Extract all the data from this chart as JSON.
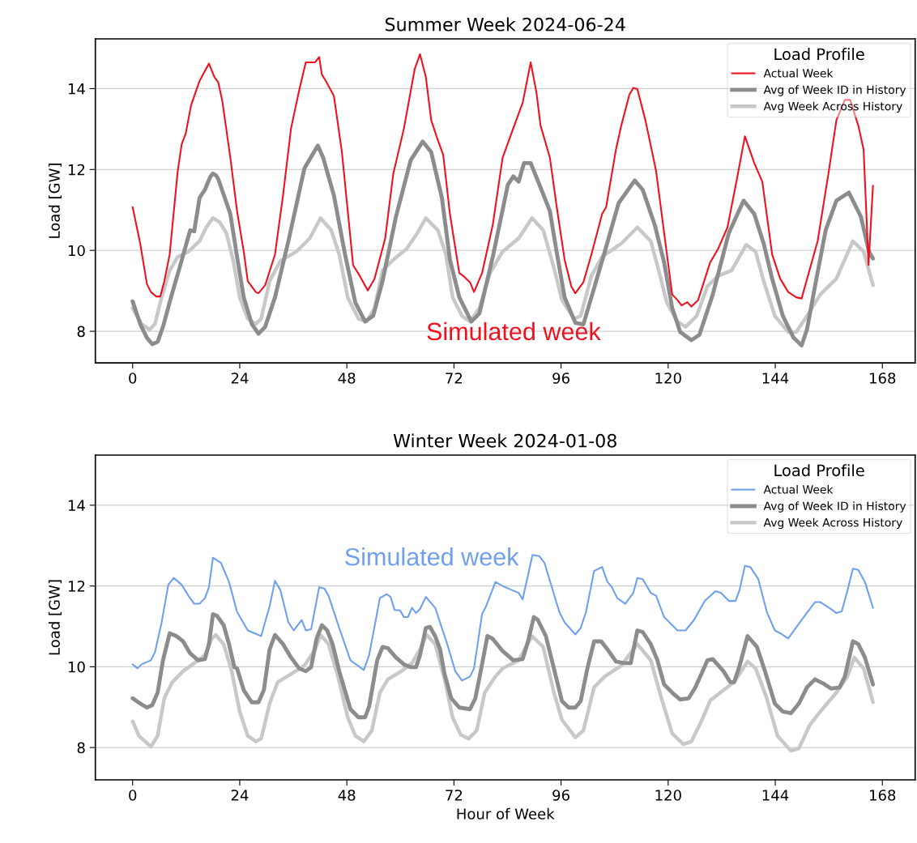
{
  "chart_data": [
    {
      "type": "line",
      "title": "Summer Week 2024-06-24",
      "ylabel": "Load [GW]",
      "legend_title": "Load Profile",
      "legend": "top right",
      "grid": "y",
      "xlim": [
        -8.35,
        175.35
      ],
      "xticks": [
        0,
        24,
        48,
        72,
        96,
        120,
        144,
        168
      ],
      "ylim": [
        7.22,
        15.23
      ],
      "yticks": [
        8,
        10,
        12,
        14
      ],
      "annotations": [
        "Simulated week"
      ],
      "series": [
        {
          "name": "Actual Week",
          "color": "#f0101e",
          "x": [
            0,
            1.7,
            3.2,
            4.1,
            5.3,
            6.2,
            7.1,
            8.3,
            10.1,
            11,
            11.9,
            13.1,
            15,
            17.1,
            18.3,
            19.2,
            20.1,
            21.9,
            23.4,
            24.9,
            25.8,
            27.6,
            28.2,
            29.7,
            31.9,
            33.7,
            35.5,
            37.3,
            38.8,
            40.9,
            41.8,
            42.4,
            43.3,
            45.1,
            46.9,
            49.4,
            50.9,
            52.7,
            54.2,
            56.6,
            58.4,
            60.8,
            63.2,
            64.4,
            65.7,
            66.9,
            68.1,
            69.6,
            71.1,
            73.2,
            74.4,
            75.6,
            76.5,
            78.3,
            80.7,
            82.9,
            85.3,
            87.4,
            89.2,
            90.5,
            91.4,
            93.5,
            95,
            96.8,
            98.3,
            99.2,
            101,
            102.8,
            105.2,
            106.1,
            108.3,
            109.5,
            111.3,
            112.2,
            113.1,
            114.9,
            117.3,
            119.1,
            120.9,
            122.1,
            123,
            124.3,
            125.2,
            126.7,
            129.4,
            131.2,
            133.3,
            135.4,
            137.2,
            139.3,
            141.1,
            143.3,
            145.1,
            146.9,
            148.7,
            149.9,
            153.5,
            155.9,
            157.7,
            159.6,
            160.8,
            162.6,
            163.8,
            164.9,
            165.9
          ],
          "values": [
            11.07,
            10.17,
            9.17,
            8.97,
            8.86,
            8.86,
            9.24,
            9.9,
            11.96,
            12.63,
            12.89,
            13.59,
            14.19,
            14.62,
            14.29,
            14.15,
            13.69,
            12.29,
            10.97,
            9.97,
            9.24,
            8.97,
            8.94,
            9.14,
            9.9,
            11.36,
            13.02,
            13.95,
            14.65,
            14.65,
            14.78,
            14.35,
            14.19,
            13.82,
            12.43,
            9.64,
            9.37,
            9.01,
            9.3,
            10.3,
            11.89,
            13.02,
            14.48,
            14.85,
            14.29,
            13.22,
            12.82,
            12.36,
            10.9,
            9.44,
            9.34,
            9.21,
            8.97,
            9.44,
            10.63,
            12.29,
            13.02,
            13.65,
            14.65,
            13.89,
            13.09,
            12.29,
            11.1,
            9.77,
            9.11,
            8.94,
            9.21,
            9.9,
            10.9,
            11.07,
            12.49,
            13.09,
            13.85,
            14.02,
            13.99,
            13.22,
            11.96,
            10.43,
            8.91,
            8.77,
            8.64,
            8.72,
            8.61,
            8.77,
            9.7,
            10.04,
            10.57,
            11.76,
            12.82,
            12.16,
            11.7,
            9.9,
            9.3,
            8.97,
            8.84,
            8.81,
            10.23,
            11.89,
            13.22,
            13.72,
            13.72,
            13.09,
            12.49,
            9.64,
            11.6
          ]
        },
        {
          "name": "Avg of Week ID in History",
          "color": "#8c8c8c",
          "x": [
            0,
            1.7,
            3.2,
            4.4,
            5.6,
            6.8,
            8.6,
            10.7,
            12.9,
            13.8,
            15,
            16.2,
            17.4,
            18,
            18.7,
            19.2,
            21.9,
            23.4,
            24.9,
            26.7,
            28.2,
            29.7,
            31.9,
            34.9,
            38.5,
            41.5,
            42.7,
            45.1,
            47.6,
            49.9,
            52.1,
            53.9,
            56,
            59,
            62.3,
            65,
            66.9,
            69.3,
            71.1,
            73.2,
            75.9,
            77.7,
            80.7,
            84.1,
            85.3,
            86.5,
            87.7,
            89.2,
            91.4,
            93.5,
            95,
            96.8,
            99.2,
            101,
            102.8,
            105.8,
            108.9,
            112.5,
            114.3,
            117,
            119.1,
            120.9,
            122.7,
            125.2,
            127,
            130,
            133.6,
            136.9,
            139.3,
            141.4,
            143.3,
            145.7,
            148.1,
            149.9,
            151.1,
            152.9,
            155.3,
            157.7,
            160.5,
            163.2,
            165,
            165.9
          ],
          "values": [
            8.74,
            8.18,
            7.84,
            7.68,
            7.74,
            8.11,
            8.84,
            9.64,
            10.5,
            10.47,
            11.3,
            11.5,
            11.82,
            11.9,
            11.85,
            11.76,
            10.9,
            9.84,
            8.84,
            8.18,
            7.94,
            8.11,
            8.84,
            10.23,
            12.03,
            12.59,
            12.29,
            11.36,
            9.9,
            8.71,
            8.24,
            8.38,
            9.24,
            10.83,
            12.23,
            12.69,
            12.43,
            11.3,
            9.77,
            8.84,
            8.24,
            8.44,
            9.84,
            11.63,
            11.83,
            11.7,
            12.16,
            12.16,
            11.56,
            10.97,
            9.97,
            8.84,
            8.21,
            8.17,
            8.84,
            9.97,
            11.17,
            11.73,
            11.5,
            10.63,
            9.7,
            8.58,
            7.98,
            7.78,
            7.91,
            8.91,
            10.43,
            11.23,
            10.9,
            10.17,
            9.3,
            8.38,
            7.84,
            7.65,
            8.04,
            9.11,
            10.5,
            11.23,
            11.43,
            10.83,
            9.97,
            9.8
          ]
        },
        {
          "name": "Avg Week Across History",
          "color": "#c8c8c8",
          "x": [
            0,
            2,
            3.8,
            5,
            6.5,
            8.3,
            10.1,
            12.5,
            15,
            16.5,
            18,
            19.5,
            21,
            22.5,
            24,
            25.8,
            27.6,
            28.8,
            30.7,
            33.1,
            36.7,
            39.7,
            42.1,
            44.5,
            46.3,
            48.2,
            50.6,
            52.4,
            54.2,
            56,
            58.4,
            61.4,
            63.8,
            65.7,
            68.4,
            70.2,
            71.7,
            73.8,
            75.6,
            77.7,
            80.1,
            82.9,
            86.5,
            89.5,
            92,
            94.4,
            96.2,
            98.9,
            100.4,
            102.8,
            105.2,
            109.5,
            113.1,
            116.1,
            117.9,
            119.7,
            122.1,
            123.9,
            126.4,
            128.8,
            131.2,
            134.2,
            137.5,
            139.6,
            141.4,
            143.9,
            146.9,
            148.7,
            151.1,
            154.1,
            157.7,
            161.4,
            163.8,
            165.9
          ],
          "values": [
            8.57,
            8.18,
            8.04,
            8.18,
            8.84,
            9.5,
            9.84,
            9.97,
            10.23,
            10.57,
            10.8,
            10.7,
            10.43,
            9.77,
            8.84,
            8.31,
            8.18,
            8.31,
            9.24,
            9.74,
            9.97,
            10.3,
            10.8,
            10.5,
            9.9,
            8.84,
            8.31,
            8.24,
            8.57,
            9.5,
            9.77,
            10.04,
            10.43,
            10.8,
            10.5,
            9.9,
            8.84,
            8.38,
            8.24,
            8.57,
            9.44,
            9.97,
            10.3,
            10.8,
            10.5,
            9.57,
            8.77,
            8.31,
            8.38,
            9.37,
            9.84,
            10.17,
            10.57,
            10.23,
            9.5,
            8.71,
            8.24,
            8.11,
            8.38,
            9.11,
            9.37,
            9.5,
            10.14,
            9.97,
            9.24,
            8.38,
            7.98,
            7.98,
            8.38,
            8.91,
            9.3,
            10.23,
            9.97,
            9.14
          ]
        }
      ]
    },
    {
      "type": "line",
      "title": "Winter Week 2024-01-08",
      "xlabel": "Hour of Week",
      "ylabel": "Load [GW]",
      "legend_title": "Load Profile",
      "legend": "top right",
      "grid": "y",
      "xlim": [
        -8.35,
        175.35
      ],
      "xticks": [
        0,
        24,
        48,
        72,
        96,
        120,
        144,
        168
      ],
      "ylim": [
        7.2,
        15.24
      ],
      "yticks": [
        8,
        10,
        12,
        14
      ],
      "annotations": [
        "Simulated week"
      ],
      "series": [
        {
          "name": "Actual Week",
          "color": "#6fa0ef",
          "x": [
            0,
            1.1,
            2,
            4.1,
            5,
            6.5,
            8,
            9.2,
            11,
            12.5,
            13.8,
            15,
            16.2,
            17.1,
            18,
            19.8,
            21.6,
            23.4,
            25.8,
            28.8,
            30.7,
            31.9,
            33.1,
            34.9,
            36.1,
            37.9,
            38.8,
            40,
            41.8,
            43,
            43.9,
            46.3,
            48.8,
            51.8,
            53,
            55.4,
            56.9,
            57.8,
            58.7,
            59.9,
            60.8,
            61.7,
            62.6,
            63.5,
            64.4,
            65.7,
            67.8,
            70.5,
            72.3,
            73.8,
            75.6,
            76.5,
            78.3,
            79.2,
            81.3,
            82.9,
            85.6,
            86.5,
            87.4,
            89.6,
            91.1,
            92.3,
            95.6,
            96.8,
            99.2,
            100.4,
            101.6,
            103.4,
            105.2,
            106.4,
            107.4,
            108.6,
            110.4,
            112.2,
            113.1,
            114.3,
            116.1,
            117.3,
            119.1,
            122.1,
            123.9,
            125.8,
            128.2,
            130.6,
            131.8,
            133.6,
            135.1,
            136,
            137.2,
            138.4,
            140.2,
            142.1,
            143.9,
            145.1,
            146.9,
            149.9,
            152.9,
            154.1,
            156.5,
            157.7,
            158.9,
            160.2,
            161.4,
            162.6,
            164.1,
            165.9
          ],
          "values": [
            10.06,
            9.96,
            10.06,
            10.16,
            10.36,
            11.1,
            12.03,
            12.2,
            12.03,
            11.76,
            11.56,
            11.56,
            11.7,
            11.97,
            12.7,
            12.57,
            12.1,
            11.36,
            10.9,
            10.76,
            11.5,
            12.13,
            11.9,
            11.1,
            10.9,
            11.16,
            10.9,
            10.93,
            11.97,
            11.93,
            11.76,
            10.96,
            10.16,
            9.92,
            10.29,
            11.7,
            11.8,
            11.73,
            11.4,
            11.4,
            11.23,
            11.23,
            11.46,
            11.33,
            11.43,
            11.73,
            11.46,
            10.56,
            9.89,
            9.66,
            9.76,
            9.96,
            11.3,
            11.5,
            12.1,
            12,
            11.87,
            11.83,
            11.67,
            12.77,
            12.74,
            12.57,
            11.36,
            11.1,
            10.8,
            10.96,
            11.36,
            12.37,
            12.47,
            12.1,
            11.97,
            11.7,
            11.56,
            11.83,
            12.2,
            12.17,
            11.83,
            11.76,
            11.23,
            10.9,
            10.9,
            11.16,
            11.63,
            11.87,
            11.83,
            11.63,
            11.63,
            11.9,
            12.5,
            12.47,
            12.17,
            11.36,
            10.9,
            10.83,
            10.7,
            11.16,
            11.6,
            11.6,
            11.43,
            11.33,
            11.37,
            11.9,
            12.43,
            12.4,
            12.1,
            11.46
          ]
        },
        {
          "name": "Avg of Week ID in History",
          "color": "#8c8c8c",
          "x": [
            0,
            1.7,
            3.2,
            4.4,
            5.6,
            6.8,
            8.3,
            9.8,
            11.3,
            12.9,
            14.7,
            16.2,
            17.1,
            18,
            18.9,
            20.4,
            21.6,
            22.8,
            23.4,
            24.9,
            26.7,
            28.2,
            29.4,
            30.7,
            31.9,
            33.7,
            35.5,
            37.3,
            38.8,
            40,
            41.2,
            42.4,
            43.6,
            44.8,
            46.3,
            48.8,
            50.6,
            52.1,
            53,
            54.8,
            56,
            57.2,
            59,
            60.8,
            62.3,
            63.5,
            64.4,
            65.7,
            66.6,
            67.8,
            68.9,
            69.9,
            71.4,
            73.2,
            75.6,
            76.8,
            78,
            79.5,
            80.7,
            82.9,
            85.3,
            87.4,
            88.6,
            89.9,
            90.8,
            92.6,
            94.1,
            96.2,
            97.7,
            99.2,
            100.4,
            101.9,
            103.4,
            105,
            106.4,
            108.3,
            110.1,
            111.6,
            113.1,
            114.3,
            116.1,
            117.6,
            119.1,
            120.9,
            122.7,
            124.6,
            126.1,
            128.8,
            130,
            132.4,
            133.9,
            134.8,
            136,
            137.8,
            139.9,
            141.7,
            143.9,
            145.7,
            147.5,
            149.3,
            151.1,
            152.9,
            154.7,
            156.5,
            158.4,
            159.6,
            161.4,
            162.6,
            164.1,
            165.9
          ],
          "values": [
            9.22,
            9.09,
            8.99,
            9.05,
            9.36,
            10.16,
            10.83,
            10.76,
            10.63,
            10.33,
            10.16,
            10.19,
            10.56,
            11.3,
            11.26,
            11.03,
            10.56,
            9.99,
            9.96,
            9.42,
            9.12,
            9.12,
            9.42,
            10.43,
            10.79,
            10.56,
            10.23,
            9.96,
            9.89,
            9.99,
            10.69,
            11.03,
            10.9,
            10.56,
            9.89,
            8.95,
            8.75,
            8.75,
            9.02,
            10.16,
            10.49,
            10.46,
            10.23,
            10.06,
            9.99,
            9.99,
            10.29,
            10.96,
            10.99,
            10.76,
            10.43,
            9.82,
            9.22,
            8.99,
            8.95,
            9.22,
            9.89,
            10.76,
            10.69,
            10.39,
            10.16,
            10.19,
            10.63,
            11.23,
            11.16,
            10.76,
            10.09,
            9.15,
            8.99,
            8.99,
            9.15,
            9.96,
            10.63,
            10.63,
            10.43,
            10.13,
            10.09,
            10.09,
            10.9,
            10.86,
            10.56,
            10.16,
            9.56,
            9.36,
            9.19,
            9.22,
            9.49,
            10.16,
            10.19,
            9.89,
            9.62,
            9.62,
            10.02,
            10.76,
            10.49,
            9.89,
            9.09,
            8.89,
            8.85,
            9.09,
            9.49,
            9.69,
            9.59,
            9.46,
            9.49,
            9.76,
            10.63,
            10.56,
            10.23,
            9.56
          ]
        },
        {
          "name": "Avg Week Across History",
          "color": "#c8c8c8",
          "x": [
            0,
            1.4,
            4.1,
            5.6,
            7.1,
            8.9,
            11.3,
            13.8,
            16.2,
            17.7,
            18.6,
            20.4,
            22.2,
            24,
            25.8,
            27.6,
            28.8,
            30.7,
            32.5,
            35.5,
            38.5,
            40.9,
            42.1,
            43.9,
            46,
            48.2,
            49.9,
            51.8,
            53.6,
            55.4,
            57.2,
            60.2,
            62.6,
            64.4,
            65.9,
            67.8,
            69.9,
            71.7,
            73.5,
            75.3,
            77.1,
            78.9,
            81.3,
            82.9,
            86.5,
            89.5,
            92,
            94.4,
            96.2,
            99.2,
            101,
            103.4,
            105.8,
            109.5,
            113.1,
            116.1,
            118.5,
            120.9,
            123.4,
            125.2,
            127.6,
            129.4,
            132.4,
            134.8,
            137.8,
            139.6,
            142.1,
            144.5,
            147.5,
            149.3,
            151.7,
            154.1,
            157.7,
            160.2,
            161.7,
            163.8,
            165.9
          ],
          "values": [
            8.65,
            8.29,
            8.02,
            8.29,
            9.22,
            9.62,
            9.89,
            10.09,
            10.29,
            10.69,
            10.79,
            10.56,
            9.89,
            8.89,
            8.29,
            8.15,
            8.22,
            9.09,
            9.62,
            9.82,
            10.03,
            10.43,
            10.79,
            10.56,
            9.76,
            8.75,
            8.29,
            8.15,
            8.42,
            9.36,
            9.69,
            9.89,
            10.09,
            10.43,
            10.79,
            10.56,
            9.69,
            8.75,
            8.32,
            8.22,
            8.42,
            9.36,
            9.76,
            9.96,
            10.16,
            10.76,
            10.49,
            9.36,
            8.69,
            8.25,
            8.42,
            9.49,
            9.76,
            10.03,
            10.56,
            10.16,
            9.22,
            8.35,
            8.08,
            8.15,
            8.69,
            9.16,
            9.42,
            9.62,
            10.13,
            9.96,
            9.22,
            8.29,
            7.92,
            7.98,
            8.55,
            8.89,
            9.36,
            9.76,
            10.23,
            9.96,
            9.12
          ]
        }
      ]
    }
  ]
}
